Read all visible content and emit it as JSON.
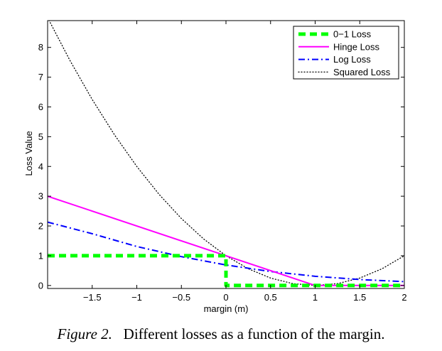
{
  "figure": {
    "label": "Figure 2.",
    "text": "Different losses as a function of the margin."
  },
  "chart_data": {
    "type": "line",
    "title": "",
    "xlabel": "margin (m)",
    "ylabel": "Loss Value",
    "xlim": [
      -2,
      2
    ],
    "ylim": [
      -0.1,
      8.9
    ],
    "xticks": [
      -1.5,
      -1,
      -0.5,
      0,
      0.5,
      1,
      1.5,
      2
    ],
    "xtick_labels": [
      "−1.5",
      "−1",
      "−0.5",
      "0",
      "0.5",
      "1",
      "1.5",
      "2"
    ],
    "yticks": [
      0,
      1,
      2,
      3,
      4,
      5,
      6,
      7,
      8
    ],
    "ytick_labels": [
      "0",
      "1",
      "2",
      "3",
      "4",
      "5",
      "6",
      "7",
      "8"
    ],
    "grid": false,
    "legend_position": "top-right",
    "series": [
      {
        "name": "0−1 Loss",
        "color": "#00ff00",
        "style": "dashed-thick",
        "x": [
          -2,
          0,
          0,
          2
        ],
        "y": [
          1,
          1,
          0,
          0
        ]
      },
      {
        "name": "Hinge Loss",
        "color": "#ff00ff",
        "style": "solid",
        "x": [
          -2,
          1,
          2
        ],
        "y": [
          3,
          0,
          0
        ]
      },
      {
        "name": "Log Loss",
        "color": "#0000ff",
        "style": "dash-dot",
        "x": [
          -2,
          -1.5,
          -1,
          -0.5,
          0,
          0.5,
          1,
          1.5,
          2
        ],
        "y": [
          2.13,
          1.74,
          1.31,
          0.97,
          0.69,
          0.47,
          0.31,
          0.2,
          0.13
        ]
      },
      {
        "name": "Squared Loss",
        "color": "#000000",
        "style": "dotted",
        "x": [
          -2,
          -1.75,
          -1.5,
          -1.25,
          -1,
          -0.75,
          -0.5,
          -0.25,
          0,
          0.25,
          0.5,
          0.75,
          1,
          1.25,
          1.5,
          1.75,
          2
        ],
        "y": [
          9,
          7.5625,
          6.25,
          5.0625,
          4,
          3.0625,
          2.25,
          1.5625,
          1,
          0.5625,
          0.25,
          0.0625,
          0,
          0.0625,
          0.25,
          0.5625,
          1
        ]
      }
    ]
  }
}
